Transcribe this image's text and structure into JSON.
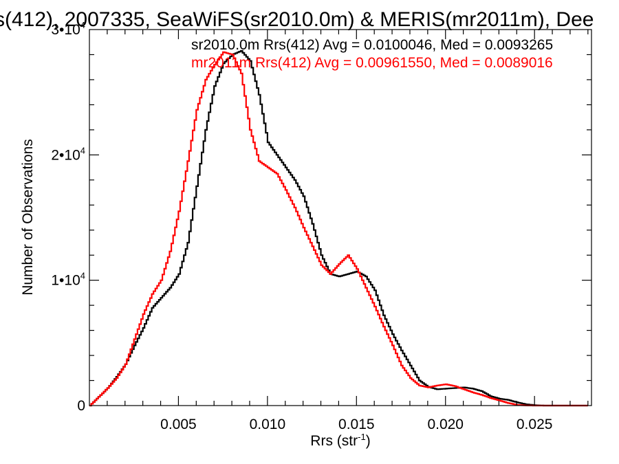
{
  "chart_data": {
    "type": "line",
    "title": "s(412), 2007335, SeaWiFS(sr2010.0m) & MERIS(mr2011m), Dee",
    "xlabel": "Rrs (str",
    "xlabel_sup": "-1",
    "xlabel_close": ")",
    "ylabel": "Number of Observations",
    "xlim": [
      0.0,
      0.0282
    ],
    "ylim": [
      0,
      30000
    ],
    "x_ticks": [
      {
        "value": 0.005,
        "label": "0.005"
      },
      {
        "value": 0.01,
        "label": "0.010"
      },
      {
        "value": 0.015,
        "label": "0.015"
      },
      {
        "value": 0.02,
        "label": "0.020"
      },
      {
        "value": 0.025,
        "label": "0.025"
      }
    ],
    "y_ticks": [
      {
        "value": 0,
        "base": "0",
        "exp": ""
      },
      {
        "value": 10000,
        "base": "1•10",
        "exp": "4"
      },
      {
        "value": 20000,
        "base": "2•10",
        "exp": "4"
      },
      {
        "value": 30000,
        "base": "3•10",
        "exp": "4"
      }
    ],
    "grid": false,
    "legend_position": "top-right",
    "series": [
      {
        "name": "sr2010.0m Rrs(412) Avg = 0.0100046, Med = 0.0093265",
        "color": "#000000",
        "points": [
          [
            0.0,
            0
          ],
          [
            0.0005,
            700
          ],
          [
            0.001,
            1400
          ],
          [
            0.0015,
            2300
          ],
          [
            0.002,
            3300
          ],
          [
            0.0025,
            4800
          ],
          [
            0.003,
            6200
          ],
          [
            0.0035,
            7800
          ],
          [
            0.004,
            8600
          ],
          [
            0.0045,
            9400
          ],
          [
            0.005,
            10500
          ],
          [
            0.0055,
            13000
          ],
          [
            0.006,
            17500
          ],
          [
            0.0065,
            22000
          ],
          [
            0.007,
            25500
          ],
          [
            0.0075,
            27300
          ],
          [
            0.008,
            28000
          ],
          [
            0.0085,
            28300
          ],
          [
            0.009,
            27500
          ],
          [
            0.0095,
            24800
          ],
          [
            0.01,
            21000
          ],
          [
            0.0105,
            20000
          ],
          [
            0.011,
            19000
          ],
          [
            0.0115,
            18000
          ],
          [
            0.012,
            16700
          ],
          [
            0.0125,
            14500
          ],
          [
            0.013,
            12000
          ],
          [
            0.0135,
            10500
          ],
          [
            0.014,
            10300
          ],
          [
            0.0145,
            10500
          ],
          [
            0.015,
            10700
          ],
          [
            0.0155,
            10300
          ],
          [
            0.016,
            9200
          ],
          [
            0.0165,
            7200
          ],
          [
            0.017,
            5700
          ],
          [
            0.0175,
            4400
          ],
          [
            0.018,
            3200
          ],
          [
            0.0185,
            2000
          ],
          [
            0.019,
            1500
          ],
          [
            0.0195,
            1300
          ],
          [
            0.02,
            1350
          ],
          [
            0.0205,
            1400
          ],
          [
            0.021,
            1450
          ],
          [
            0.0215,
            1350
          ],
          [
            0.022,
            1150
          ],
          [
            0.0225,
            750
          ],
          [
            0.023,
            550
          ],
          [
            0.0235,
            450
          ],
          [
            0.024,
            250
          ],
          [
            0.0245,
            100
          ],
          [
            0.025,
            30
          ],
          [
            0.0255,
            0
          ],
          [
            0.028,
            0
          ]
        ]
      },
      {
        "name": "mr2011m Rrs(412) Avg = 0.00961550, Med = 0.0089016",
        "color": "#ff0000",
        "points": [
          [
            0.0,
            0
          ],
          [
            0.0005,
            700
          ],
          [
            0.001,
            1400
          ],
          [
            0.0015,
            2200
          ],
          [
            0.002,
            3300
          ],
          [
            0.0025,
            5300
          ],
          [
            0.003,
            7300
          ],
          [
            0.0035,
            8900
          ],
          [
            0.004,
            10000
          ],
          [
            0.0045,
            12300
          ],
          [
            0.005,
            15500
          ],
          [
            0.0055,
            19500
          ],
          [
            0.006,
            23600
          ],
          [
            0.0065,
            26000
          ],
          [
            0.007,
            27200
          ],
          [
            0.0075,
            28200
          ],
          [
            0.008,
            28000
          ],
          [
            0.0085,
            26500
          ],
          [
            0.009,
            22000
          ],
          [
            0.0095,
            19500
          ],
          [
            0.01,
            19000
          ],
          [
            0.0105,
            18500
          ],
          [
            0.011,
            17200
          ],
          [
            0.0115,
            15800
          ],
          [
            0.012,
            14200
          ],
          [
            0.0125,
            12700
          ],
          [
            0.013,
            11200
          ],
          [
            0.0135,
            10500
          ],
          [
            0.014,
            11300
          ],
          [
            0.0145,
            12000
          ],
          [
            0.015,
            10900
          ],
          [
            0.0155,
            9400
          ],
          [
            0.016,
            7900
          ],
          [
            0.0165,
            6300
          ],
          [
            0.017,
            4800
          ],
          [
            0.0175,
            3200
          ],
          [
            0.018,
            2200
          ],
          [
            0.0185,
            1600
          ],
          [
            0.019,
            1450
          ],
          [
            0.0195,
            1600
          ],
          [
            0.02,
            1700
          ],
          [
            0.0205,
            1550
          ],
          [
            0.021,
            1300
          ],
          [
            0.0215,
            1050
          ],
          [
            0.022,
            850
          ],
          [
            0.0225,
            600
          ],
          [
            0.023,
            400
          ],
          [
            0.0235,
            200
          ],
          [
            0.024,
            50
          ],
          [
            0.0245,
            10
          ],
          [
            0.025,
            0
          ],
          [
            0.028,
            0
          ]
        ]
      }
    ]
  }
}
